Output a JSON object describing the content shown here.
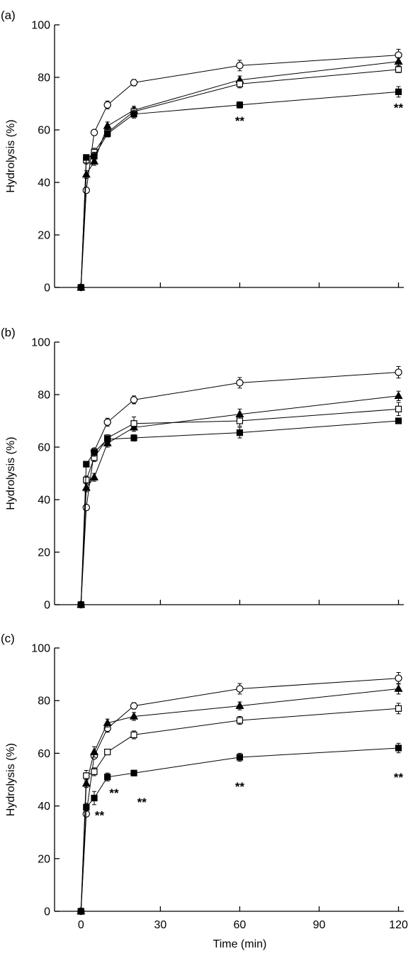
{
  "chart_data": [
    {
      "type": "line",
      "panel_label": "(a)",
      "ylabel": "Hydrolysis (%)",
      "xlabel": "",
      "ylim": [
        0,
        100
      ],
      "yticks": [
        0,
        20,
        40,
        60,
        80,
        100
      ],
      "xlim": [
        -10,
        122
      ],
      "xticks": [
        0,
        30,
        60,
        90,
        120
      ],
      "x_tick_labels_shown": false,
      "series": [
        {
          "marker": "circle-open",
          "x": [
            0,
            2,
            5,
            10,
            20,
            60,
            120
          ],
          "y": [
            0,
            37,
            59,
            69.5,
            78,
            84.5,
            88.5
          ],
          "err": [
            0,
            1,
            1,
            1.5,
            1.2,
            2,
            2.2
          ]
        },
        {
          "marker": "triangle-filled",
          "x": [
            0,
            2,
            5,
            10,
            20,
            60,
            120
          ],
          "y": [
            0,
            43,
            48,
            61.5,
            67.5,
            79,
            86
          ],
          "err": [
            0,
            1.5,
            1.5,
            1.5,
            1.5,
            1.5,
            1.5
          ]
        },
        {
          "marker": "square-open",
          "x": [
            0,
            2,
            5,
            10,
            20,
            60,
            120
          ],
          "y": [
            0,
            48.5,
            51.5,
            59,
            67,
            77.5,
            83
          ],
          "err": [
            0,
            1.5,
            1.5,
            1.2,
            1.5,
            1.5,
            1.2
          ]
        },
        {
          "marker": "square-filled",
          "x": [
            0,
            2,
            5,
            10,
            20,
            60,
            120
          ],
          "y": [
            0,
            49.5,
            50,
            58.5,
            66,
            69.5,
            74.5
          ],
          "err": [
            0,
            1,
            1.5,
            1.2,
            1.5,
            1.2,
            2
          ]
        }
      ],
      "annotations": [
        {
          "text": "**",
          "x": 60,
          "y": 63.5
        },
        {
          "text": "**",
          "x": 120,
          "y": 68.5
        }
      ]
    },
    {
      "type": "line",
      "panel_label": "(b)",
      "ylabel": "Hydrolysis (%)",
      "xlabel": "",
      "ylim": [
        0,
        100
      ],
      "yticks": [
        0,
        20,
        40,
        60,
        80,
        100
      ],
      "xlim": [
        -10,
        122
      ],
      "xticks": [
        0,
        30,
        60,
        90,
        120
      ],
      "x_tick_labels_shown": false,
      "series": [
        {
          "marker": "circle-open",
          "x": [
            0,
            2,
            5,
            10,
            20,
            60,
            120
          ],
          "y": [
            0,
            37,
            58.5,
            69.5,
            78,
            84.5,
            88.5
          ],
          "err": [
            0,
            1,
            1,
            1.5,
            1.5,
            2,
            2.2
          ]
        },
        {
          "marker": "triangle-filled",
          "x": [
            0,
            2,
            5,
            10,
            20,
            60,
            120
          ],
          "y": [
            0,
            44.5,
            48.5,
            61.5,
            67.5,
            72.5,
            79.5
          ],
          "err": [
            0,
            1.5,
            1.5,
            1.5,
            1.5,
            2,
            1.8
          ]
        },
        {
          "marker": "square-open",
          "x": [
            0,
            2,
            5,
            10,
            20,
            60,
            120
          ],
          "y": [
            0,
            47.5,
            56,
            63.5,
            69,
            70,
            74.5
          ],
          "err": [
            0,
            1.5,
            1.5,
            1.2,
            2.5,
            2,
            2.5
          ]
        },
        {
          "marker": "square-filled",
          "x": [
            0,
            2,
            5,
            10,
            20,
            60,
            120
          ],
          "y": [
            0,
            53.5,
            58,
            63,
            63.5,
            65.5,
            70
          ],
          "err": [
            0,
            1,
            1.5,
            1.2,
            1.2,
            2,
            1
          ]
        }
      ],
      "annotations": []
    },
    {
      "type": "line",
      "panel_label": "(c)",
      "ylabel": "Hydrolysis (%)",
      "xlabel": "Time (min)",
      "ylim": [
        0,
        100
      ],
      "yticks": [
        0,
        20,
        40,
        60,
        80,
        100
      ],
      "xlim": [
        -10,
        122
      ],
      "xticks": [
        0,
        30,
        60,
        90,
        120
      ],
      "x_tick_labels_shown": true,
      "series": [
        {
          "marker": "circle-open",
          "x": [
            0,
            2,
            5,
            10,
            20,
            60,
            120
          ],
          "y": [
            0,
            37,
            59,
            69.5,
            78,
            84.5,
            88.5
          ],
          "err": [
            0,
            1,
            1,
            1.5,
            1.2,
            2,
            2.2
          ]
        },
        {
          "marker": "triangle-filled",
          "x": [
            0,
            2,
            5,
            10,
            20,
            60,
            120
          ],
          "y": [
            0,
            48.5,
            60.5,
            71.5,
            74,
            78,
            84.5
          ],
          "err": [
            0,
            1.5,
            2,
            1.5,
            1.5,
            1.5,
            2
          ]
        },
        {
          "marker": "square-open",
          "x": [
            0,
            2,
            5,
            10,
            20,
            60,
            120
          ],
          "y": [
            0,
            51.5,
            53,
            60.5,
            67,
            72.5,
            77
          ],
          "err": [
            0,
            2,
            1.5,
            1,
            1.5,
            1.5,
            2
          ]
        },
        {
          "marker": "square-filled",
          "x": [
            0,
            2,
            5,
            10,
            20,
            60,
            120
          ],
          "y": [
            0,
            39.5,
            43,
            51,
            52.5,
            58.5,
            62
          ],
          "err": [
            0,
            1.5,
            2.5,
            1.5,
            1,
            1.5,
            1.8
          ]
        }
      ],
      "annotations": [
        {
          "text": "**",
          "x": 7,
          "y": 36.5
        },
        {
          "text": "**",
          "x": 12.5,
          "y": 45
        },
        {
          "text": "**",
          "x": 23,
          "y": 41.5
        },
        {
          "text": "**",
          "x": 60,
          "y": 47.5
        },
        {
          "text": "**",
          "x": 120,
          "y": 51
        }
      ]
    }
  ]
}
